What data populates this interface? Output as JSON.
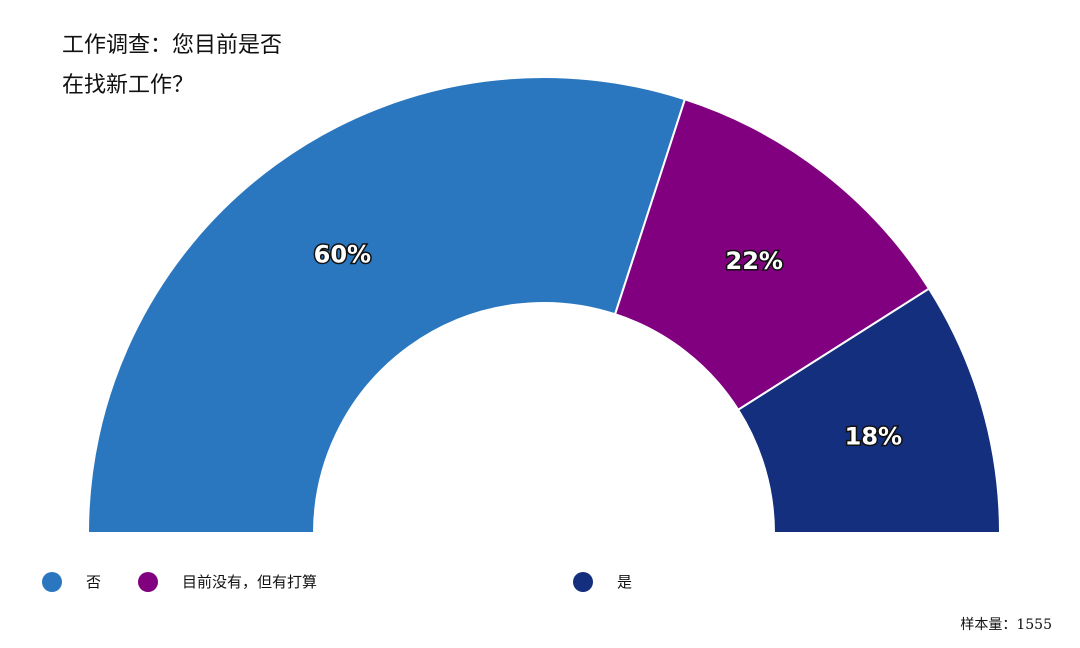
{
  "title_lines": [
    "工作调查：您目前是否",
    "在找新工作？"
  ],
  "chart_data": {
    "type": "pie",
    "subtype": "half-donut",
    "categories": [
      "否",
      "目前没有，但有打算",
      "是"
    ],
    "values": [
      60,
      22,
      18
    ],
    "value_labels": [
      "60%",
      "22%",
      "18%"
    ],
    "colors": [
      "#2a77bf",
      "#800080",
      "#132f7d"
    ],
    "legend_position": "bottom"
  },
  "footer": {
    "sample_label": "样本量：1555"
  }
}
